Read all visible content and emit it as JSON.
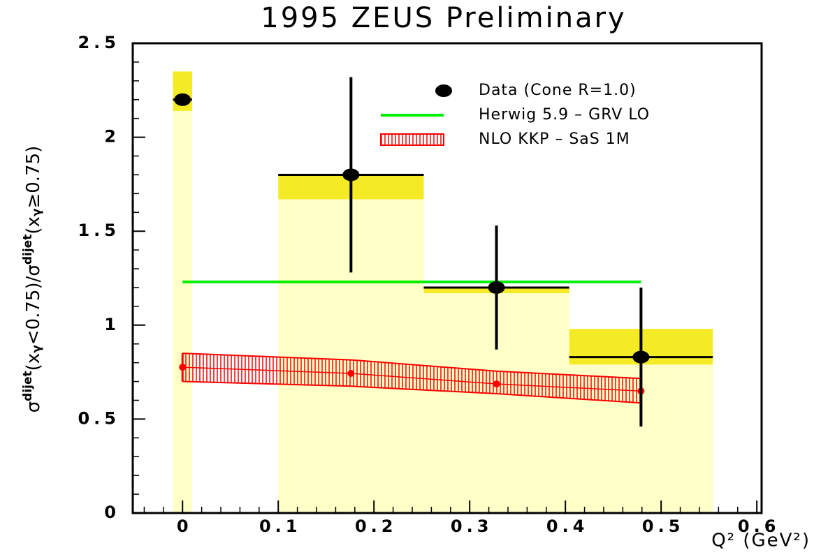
{
  "chart_data": {
    "type": "errorbar",
    "title": "1995 ZEUS Preliminary",
    "x_label": "Q² (GeV²)",
    "y_label_parts": [
      "σ",
      "dijet",
      "(x",
      "γ",
      "<0.75)/σ",
      "dijet",
      "(x",
      "γ",
      "≥0.75)"
    ],
    "xlim": [
      -0.052,
      0.605
    ],
    "ylim": [
      0,
      2.5
    ],
    "xticks": [
      0,
      0.1,
      0.2,
      0.3,
      0.4,
      0.5,
      0.6
    ],
    "yticks": [
      0,
      0.5,
      1,
      1.5,
      2,
      2.5
    ],
    "legend": "top right",
    "syst_color": "#f2e600",
    "syst_fill_color": "#ffffc8",
    "series": [
      {
        "name": "Data (Cone R=1.0)",
        "color": "#000000",
        "x": [
          0,
          0.176,
          0.328,
          0.479
        ],
        "values": [
          2.2,
          1.8,
          1.2,
          0.83
        ],
        "y_low": [
          2.18,
          1.28,
          0.87,
          0.46
        ],
        "y_high": [
          2.22,
          2.32,
          1.53,
          1.2
        ],
        "x_low": [
          -0.01,
          0.1,
          0.252,
          0.404
        ],
        "x_high": [
          0.01,
          0.252,
          0.404,
          0.554
        ],
        "syst_low": [
          2.14,
          1.67,
          1.17,
          0.79
        ],
        "syst_high": [
          2.35,
          1.8,
          1.2,
          0.98
        ]
      },
      {
        "name": "Herwig 5.9 – GRV LO",
        "color": "#00ee00",
        "x": [
          0,
          0.479
        ],
        "values": [
          1.23,
          1.23
        ]
      },
      {
        "name": "NLO KKP – SaS 1M",
        "color": "#ff0000",
        "x": [
          0,
          0.176,
          0.328,
          0.479
        ],
        "values": [
          0.776,
          0.743,
          0.687,
          0.649
        ],
        "band_low": [
          0.7,
          0.675,
          0.635,
          0.586
        ],
        "band_high": [
          0.85,
          0.815,
          0.755,
          0.716
        ]
      }
    ]
  }
}
